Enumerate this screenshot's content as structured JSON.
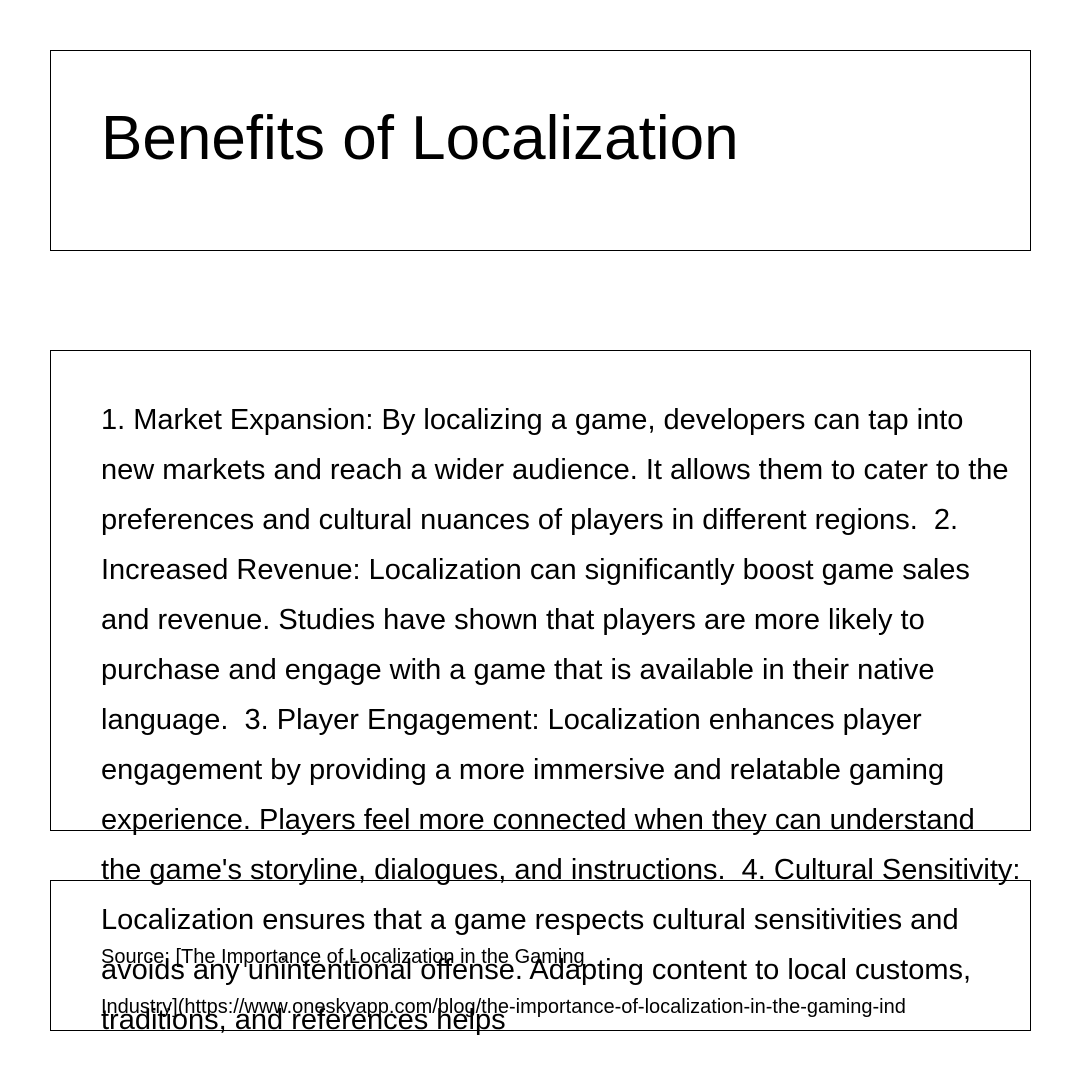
{
  "slide": {
    "title": "Benefits of Localization",
    "body": "1. Market Expansion: By localizing a game, developers can tap into new markets and reach a wider audience. It allows them to cater to the preferences and cultural nuances of players in different regions.  2. Increased Revenue: Localization can significantly boost game sales and revenue. Studies have shown that players are more likely to purchase and engage with a game that is available in their native language.  3. Player Engagement: Localization enhances player engagement by providing a more immersive and relatable gaming experience. Players feel more connected when they can understand the game's storyline, dialogues, and instructions.  4. Cultural Sensitivity: Localization ensures that a game respects cultural sensitivities and avoids any unintentional offense. Adapting content to local customs, traditions, and references helps",
    "source_line1": "Source: [The Importance of Localization in the Gaming",
    "source_line2": "Industry](https://www.oneskyapp.com/blog/the-importance-of-localization-in-the-gaming-ind"
  }
}
